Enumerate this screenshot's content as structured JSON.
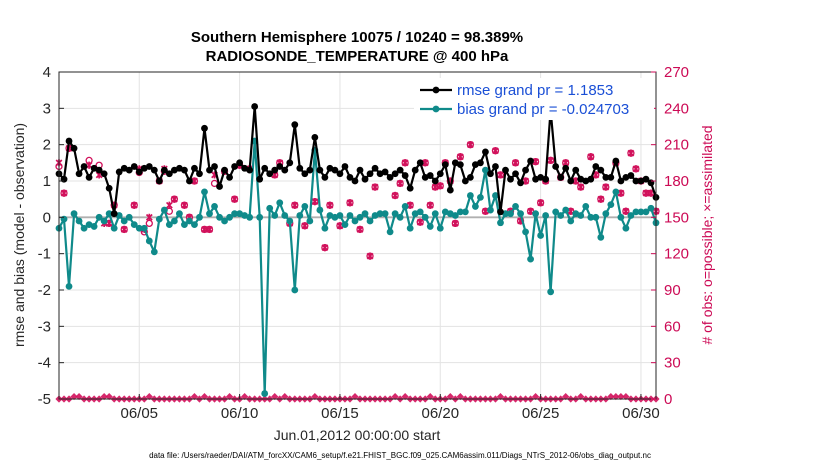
{
  "chart_data": {
    "type": "line",
    "title": "Southern Hemisphere 10075 / 10240 = 98.389%",
    "subtitle": "RADIOSONDE_TEMPERATURE @ 400 hPa",
    "xlabel": "Jun.01,2012 00:00:00 start",
    "ylabel_left": "rmse and bias (model - observation)",
    "ylabel_right": "# of obs: o=possible; ×=assimilated",
    "ylim_left": [
      -5,
      4
    ],
    "ylim_right": [
      0,
      270
    ],
    "xlim": [
      1.0,
      30.75
    ],
    "yticks_left": [
      -5,
      -4,
      -3,
      -2,
      -1,
      0,
      1,
      2,
      3,
      4
    ],
    "yticks_right": [
      0,
      30,
      60,
      90,
      120,
      150,
      180,
      210,
      240,
      270
    ],
    "xticks": [
      {
        "day": 5,
        "label": "06/05"
      },
      {
        "day": 10,
        "label": "06/10"
      },
      {
        "day": 15,
        "label": "06/15"
      },
      {
        "day": 20,
        "label": "06/20"
      },
      {
        "day": 25,
        "label": "06/25"
      },
      {
        "day": 30,
        "label": "06/30"
      }
    ],
    "grid": true,
    "legend_position": "top-right",
    "x": [
      1.0,
      1.25,
      1.5,
      1.75,
      2.0,
      2.25,
      2.5,
      2.75,
      3.0,
      3.25,
      3.5,
      3.75,
      4.0,
      4.25,
      4.5,
      4.75,
      5.0,
      5.25,
      5.5,
      5.75,
      6.0,
      6.25,
      6.5,
      6.75,
      7.0,
      7.25,
      7.5,
      7.75,
      8.0,
      8.25,
      8.5,
      8.75,
      9.0,
      9.25,
      9.5,
      9.75,
      10.0,
      10.25,
      10.5,
      10.75,
      11.0,
      11.25,
      11.5,
      11.75,
      12.0,
      12.25,
      12.5,
      12.75,
      13.0,
      13.25,
      13.5,
      13.75,
      14.0,
      14.25,
      14.5,
      14.75,
      15.0,
      15.25,
      15.5,
      15.75,
      16.0,
      16.25,
      16.5,
      16.75,
      17.0,
      17.25,
      17.5,
      17.75,
      18.0,
      18.25,
      18.5,
      18.75,
      19.0,
      19.25,
      19.5,
      19.75,
      20.0,
      20.25,
      20.5,
      20.75,
      21.0,
      21.25,
      21.5,
      21.75,
      22.0,
      22.25,
      22.5,
      22.75,
      23.0,
      23.25,
      23.5,
      23.75,
      24.0,
      24.25,
      24.5,
      24.75,
      25.0,
      25.25,
      25.5,
      25.75,
      26.0,
      26.25,
      26.5,
      26.75,
      27.0,
      27.25,
      27.5,
      27.75,
      28.0,
      28.25,
      28.5,
      28.75,
      29.0,
      29.25,
      29.5,
      29.75,
      30.0,
      30.25,
      30.5,
      30.75
    ],
    "series": [
      {
        "name": "rmse",
        "legend_label": "rmse grand pr = 1.1853",
        "color": "#000000",
        "axis": "left",
        "values": [
          1.2,
          1.05,
          2.1,
          1.9,
          1.2,
          1.4,
          1.1,
          1.35,
          1.3,
          1.2,
          0.8,
          0.1,
          1.25,
          1.35,
          1.3,
          1.4,
          1.25,
          1.35,
          1.4,
          1.3,
          1.0,
          1.3,
          1.2,
          1.3,
          1.35,
          1.3,
          1.0,
          1.35,
          1.2,
          2.45,
          1.3,
          1.4,
          0.85,
          1.3,
          1.1,
          1.4,
          1.5,
          1.35,
          1.3,
          3.05,
          1.05,
          1.35,
          1.2,
          1.3,
          1.4,
          1.3,
          1.5,
          2.55,
          1.35,
          1.2,
          1.3,
          2.2,
          1.3,
          1.1,
          1.35,
          1.3,
          1.2,
          1.4,
          1.1,
          1.0,
          1.3,
          1.05,
          1.2,
          1.35,
          1.2,
          1.25,
          1.1,
          1.2,
          1.3,
          1.15,
          0.8,
          1.3,
          1.5,
          1.1,
          1.15,
          1.0,
          1.2,
          1.45,
          0.75,
          1.5,
          1.45,
          1.0,
          1.1,
          1.45,
          1.5,
          1.8,
          1.2,
          1.4,
          0.15,
          1.3,
          1.05,
          1.2,
          0.95,
          1.3,
          1.55,
          1.05,
          1.1,
          1.05,
          2.95,
          1.4,
          1.1,
          1.35,
          1.0,
          1.3,
          1.05,
          1.0,
          1.05,
          1.4,
          1.3,
          1.1,
          1.1,
          1.55,
          1.0,
          1.1,
          1.15,
          1.0,
          1.0,
          1.05,
          0.95,
          0.55
        ]
      },
      {
        "name": "bias",
        "legend_label": "bias grand pr = -0.024703",
        "color": "#0f8a8a",
        "axis": "left",
        "values": [
          -0.3,
          -0.05,
          -1.9,
          0.1,
          -0.1,
          -0.3,
          -0.2,
          -0.25,
          0.0,
          -0.1,
          0.1,
          -0.3,
          0.05,
          -0.1,
          0.0,
          -0.2,
          -0.3,
          -0.3,
          -0.65,
          -0.95,
          -0.05,
          0.2,
          -0.2,
          -0.1,
          0.1,
          -0.2,
          -0.1,
          -0.2,
          0.0,
          0.7,
          0.1,
          0.3,
          0.0,
          -0.1,
          0.0,
          0.1,
          0.1,
          0.05,
          0.0,
          2.1,
          0.0,
          -4.85,
          0.25,
          0.05,
          0.4,
          0.05,
          -0.1,
          -2.0,
          0.05,
          0.3,
          -0.1,
          1.85,
          0.2,
          -0.3,
          0.05,
          0.0,
          0.05,
          -0.2,
          0.05,
          -0.1,
          0.0,
          0.1,
          -0.1,
          0.05,
          0.1,
          0.1,
          -0.4,
          0.1,
          0.0,
          0.3,
          -0.3,
          0.1,
          0.15,
          0.0,
          -0.25,
          0.1,
          -0.3,
          0.15,
          0.1,
          0.05,
          0.15,
          0.15,
          0.6,
          0.3,
          0.55,
          1.3,
          0.2,
          0.6,
          -0.15,
          0.1,
          0.1,
          0.3,
          0.1,
          -0.4,
          -1.15,
          0.1,
          -0.5,
          0.05,
          -2.05,
          0.15,
          0.05,
          0.2,
          -0.1,
          0.1,
          0.05,
          0.3,
          0.0,
          0.0,
          -0.55,
          0.1,
          0.35,
          0.7,
          0.0,
          -0.3,
          0.05,
          0.15,
          0.15,
          0.15,
          0.25,
          -0.15
        ]
      },
      {
        "name": "obs possible",
        "marker": "o",
        "color": "#d1115b",
        "axis": "right",
        "values": [
          192,
          170,
          207,
          0,
          0,
          0,
          197,
          0,
          193,
          0,
          145,
          160,
          0,
          140,
          0,
          160,
          187,
          138,
          145,
          0,
          180,
          188,
          155,
          165,
          0,
          160,
          150,
          180,
          0,
          140,
          140,
          178,
          0,
          188,
          0,
          165,
          193,
          0,
          190,
          0,
          0,
          0,
          0,
          185,
          195,
          0,
          145,
          160,
          0,
          143,
          0,
          163,
          0,
          125,
          160,
          0,
          143,
          0,
          162,
          0,
          140,
          0,
          118,
          175,
          0,
          0,
          0,
          168,
          178,
          195,
          160,
          0,
          146,
          195,
          160,
          175,
          176,
          195,
          180,
          145,
          200,
          0,
          210,
          0,
          0,
          155,
          0,
          205,
          185,
          0,
          155,
          195,
          147,
          180,
          155,
          196,
          162,
          180,
          197,
          0,
          183,
          195,
          155,
          180,
          175,
          0,
          200,
          185,
          165,
          175,
          0,
          195,
          170,
          155,
          203,
          190,
          180,
          170,
          170,
          155
        ]
      },
      {
        "name": "obs assimilated",
        "marker": "x",
        "color": "#d1115b",
        "axis": "right",
        "values": [
          195,
          170,
          207,
          0,
          0,
          0,
          193,
          0,
          185,
          145,
          145,
          160,
          0,
          140,
          0,
          160,
          190,
          140,
          150,
          0,
          180,
          190,
          160,
          165,
          0,
          160,
          150,
          180,
          0,
          140,
          140,
          185,
          0,
          188,
          0,
          165,
          193,
          0,
          190,
          0,
          0,
          0,
          0,
          185,
          195,
          0,
          145,
          160,
          0,
          143,
          0,
          163,
          0,
          125,
          160,
          0,
          143,
          0,
          162,
          0,
          140,
          0,
          118,
          175,
          0,
          0,
          0,
          168,
          178,
          195,
          160,
          0,
          146,
          195,
          160,
          175,
          176,
          195,
          180,
          145,
          200,
          0,
          210,
          0,
          0,
          155,
          0,
          205,
          185,
          0,
          155,
          195,
          147,
          180,
          155,
          196,
          162,
          180,
          197,
          0,
          183,
          195,
          155,
          180,
          175,
          0,
          200,
          185,
          165,
          175,
          0,
          195,
          170,
          155,
          203,
          190,
          180,
          170,
          170,
          155
        ]
      },
      {
        "name": "obs baseline",
        "color": "#d1115b",
        "axis": "right",
        "values": [
          0,
          0,
          0,
          2,
          2,
          0,
          0,
          0,
          0,
          2,
          2,
          0,
          0,
          0,
          0,
          0,
          0,
          0,
          2,
          0,
          0,
          0,
          0,
          0,
          0,
          0,
          0,
          2,
          0,
          2,
          0,
          0,
          0,
          0,
          2,
          0,
          0,
          2,
          0,
          0,
          0,
          0,
          0,
          2,
          0,
          2,
          0,
          0,
          0,
          0,
          0,
          2,
          0,
          0,
          0,
          0,
          0,
          0,
          0,
          2,
          0,
          0,
          0,
          0,
          0,
          0,
          0,
          2,
          0,
          2,
          0,
          0,
          0,
          0,
          2,
          0,
          0,
          0,
          2,
          0,
          2,
          0,
          0,
          0,
          0,
          0,
          0,
          0,
          2,
          0,
          0,
          0,
          0,
          0,
          0,
          2,
          0,
          0,
          0,
          0,
          0,
          2,
          0,
          0,
          2,
          0,
          0,
          0,
          0,
          0,
          2,
          2,
          2,
          2,
          0,
          0,
          0,
          0,
          0,
          0
        ]
      }
    ],
    "footer": "data file: /Users/raeder/DAI/ATM_forcXX/CAM6_setup/f.e21.FHIST_BGC.f09_025.CAM6assim.011/Diags_NTrS_2012-06/obs_diag_output.nc"
  }
}
